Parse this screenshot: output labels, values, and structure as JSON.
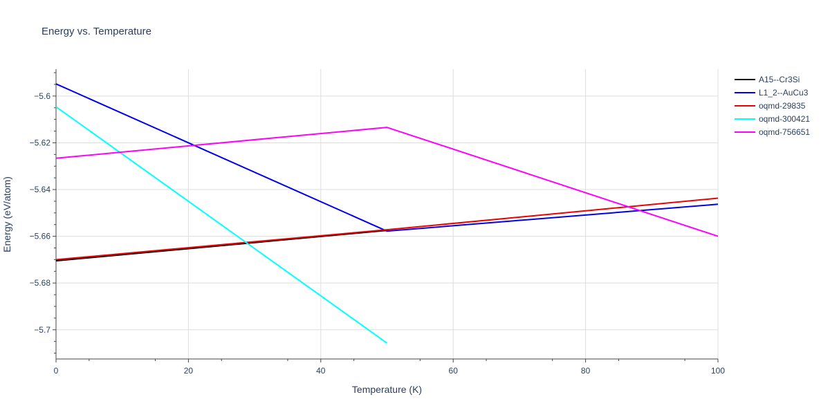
{
  "chart_data": {
    "type": "line",
    "title": "Energy vs. Temperature",
    "xlabel": "Temperature (K)",
    "ylabel": "Energy (eV/atom)",
    "xlim": [
      0,
      100
    ],
    "ylim": [
      -5.7125,
      -5.5885
    ],
    "x_ticks": [
      0,
      20,
      40,
      60,
      80,
      100
    ],
    "y_ticks": [
      -5.7,
      -5.68,
      -5.66,
      -5.64,
      -5.62,
      -5.6
    ],
    "y_tick_labels": [
      "−5.7",
      "−5.68",
      "−5.66",
      "−5.64",
      "−5.62",
      "−5.6"
    ],
    "grid": true,
    "legend_position": "top-right",
    "series": [
      {
        "name": "A15--Cr3Si",
        "color": "#000000",
        "x": [
          0,
          50
        ],
        "y": [
          -5.6705,
          -5.6575
        ]
      },
      {
        "name": "L1_2--AuCu3",
        "color": "#0000ee",
        "x": [
          0,
          50,
          100
        ],
        "y": [
          -5.5948,
          -5.6578,
          -5.6463
        ]
      },
      {
        "name": "oqmd-29835",
        "color": "#ee0000",
        "x": [
          0,
          50,
          100
        ],
        "y": [
          -5.67,
          -5.6572,
          -5.6437
        ]
      },
      {
        "name": "oqmd-300421",
        "color": "#00ffff",
        "x": [
          0,
          50
        ],
        "y": [
          -5.6046,
          -5.7057
        ]
      },
      {
        "name": "oqmd-756651",
        "color": "#ff00ff",
        "x": [
          0,
          50,
          100
        ],
        "y": [
          -5.6266,
          -5.6134,
          -5.66
        ]
      }
    ]
  }
}
